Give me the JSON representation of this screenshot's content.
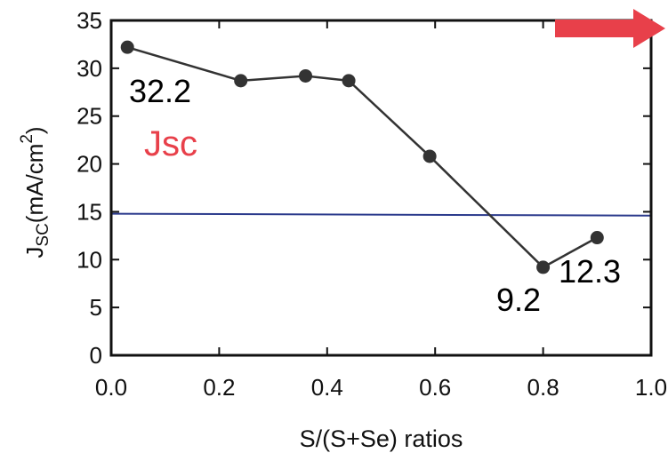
{
  "chart_data": {
    "type": "line",
    "xlabel": "S/(S+Se) ratios",
    "ylabel": {
      "main": "J",
      "subscript": "SC",
      "unit_open": "(mA/cm",
      "superscript": "2",
      "unit_close": ")"
    },
    "xlim": [
      0,
      1.0
    ],
    "ylim": [
      0,
      35
    ],
    "xticks": [
      "0.0",
      "0.2",
      "0.4",
      "0.6",
      "0.8",
      "1.0"
    ],
    "yticks": [
      "0",
      "5",
      "10",
      "15",
      "20",
      "25",
      "30",
      "35"
    ],
    "series": [
      {
        "name": "Jsc",
        "color": "#333333",
        "name_color": "#e8404a",
        "x": [
          0.03,
          0.24,
          0.36,
          0.44,
          0.59,
          0.8,
          0.9
        ],
        "y": [
          32.2,
          28.7,
          29.2,
          28.7,
          20.8,
          9.2,
          12.3
        ]
      }
    ],
    "reference_line": {
      "y_start": 14.8,
      "y_end": 14.6,
      "color": "#2b3a8c"
    },
    "annotations": [
      {
        "text": "32.2",
        "point_index": 0
      },
      {
        "text": "9.2",
        "point_index": 5
      },
      {
        "text": "12.3",
        "point_index": 6
      }
    ],
    "arrow": {
      "direction": "right",
      "color": "#e8404a"
    },
    "grid": false
  }
}
